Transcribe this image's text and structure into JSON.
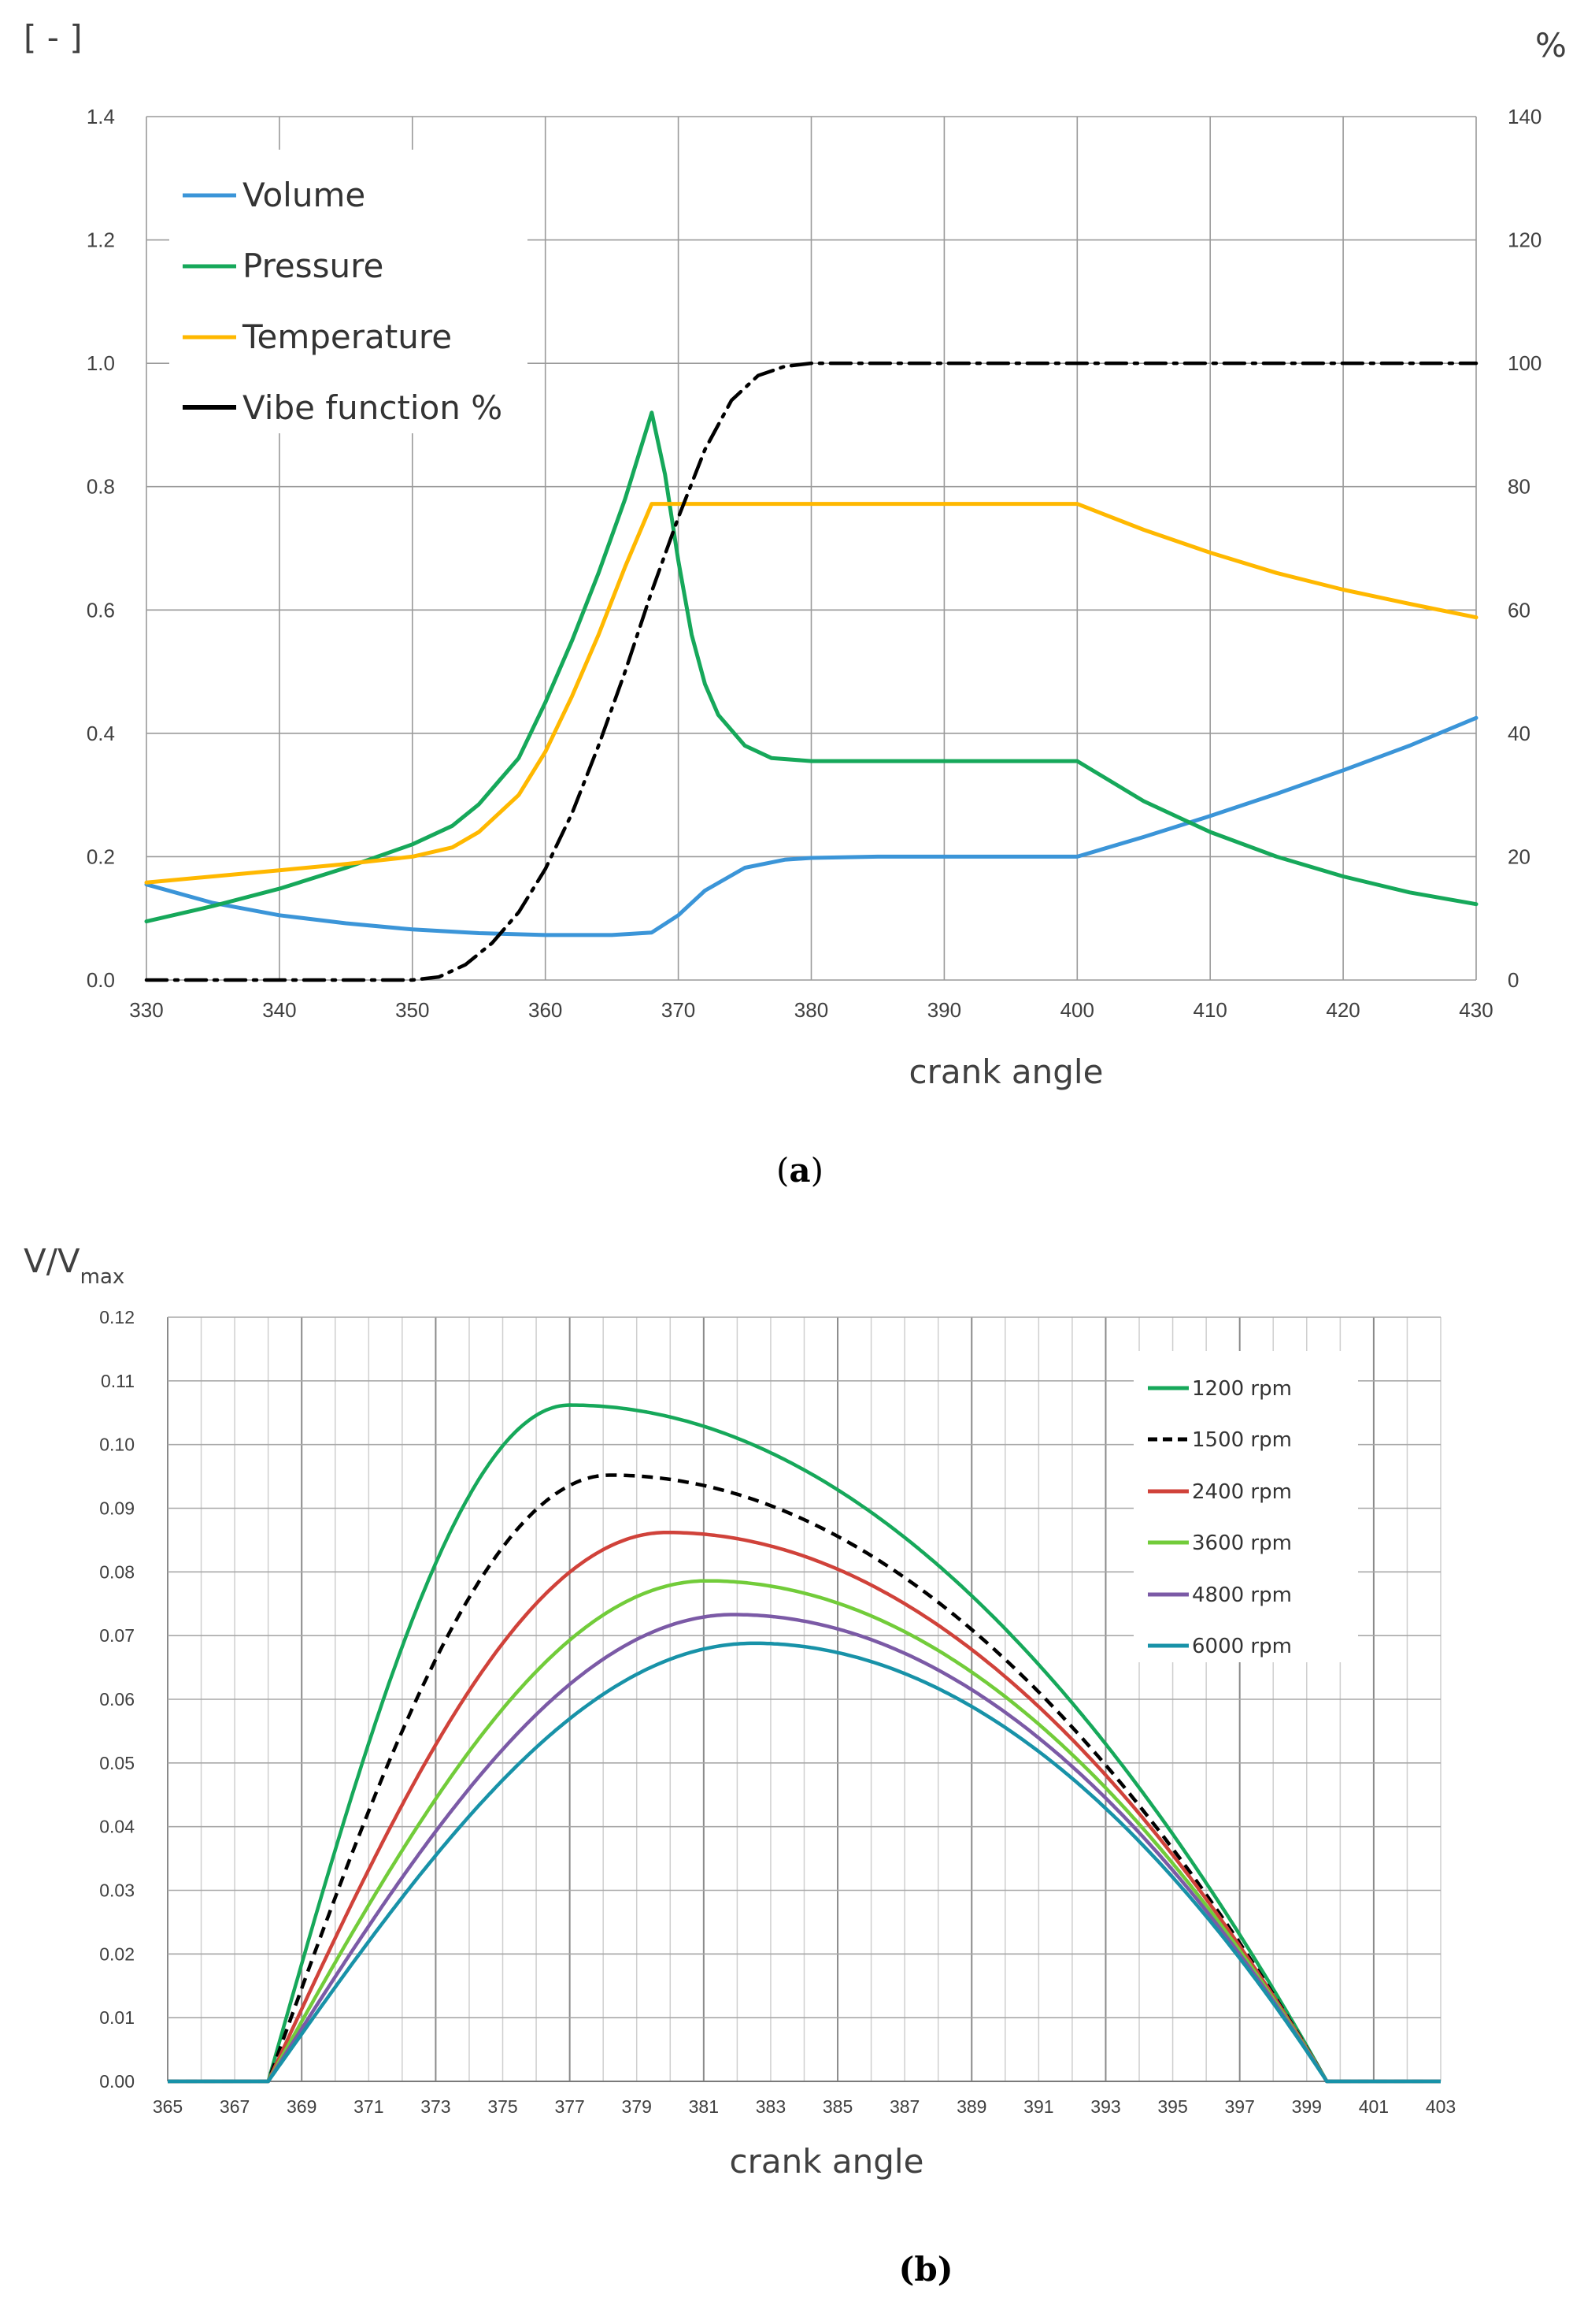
{
  "chart_data": [
    {
      "type": "line",
      "caption": "a",
      "caption_open": "(",
      "caption_close": ")",
      "xlabel": "crank angle",
      "ylabel_left": "[ - ]",
      "ylabel_right": "%",
      "xlim": [
        330,
        430
      ],
      "ylim_left": [
        0,
        1.4
      ],
      "ylim_right": [
        0,
        140
      ],
      "x_ticks": [
        "330",
        "340",
        "350",
        "360",
        "370",
        "380",
        "390",
        "400",
        "410",
        "420",
        "430"
      ],
      "y_ticks_left": [
        "0.0",
        "0.2",
        "0.4",
        "0.6",
        "0.8",
        "1.0",
        "1.2",
        "1.4"
      ],
      "y_ticks_right": [
        "0",
        "20",
        "40",
        "60",
        "80",
        "100",
        "120",
        "140"
      ],
      "grid": true,
      "legend_position": "top-left",
      "series": [
        {
          "name": "Volume",
          "color": "#3b95d8",
          "style": "solid",
          "axis": "left",
          "x": [
            330,
            335,
            340,
            345,
            350,
            355,
            360,
            365,
            368,
            370,
            372,
            375,
            378,
            380,
            385,
            390,
            395,
            400,
            405,
            410,
            415,
            420,
            425,
            430
          ],
          "y": [
            0.155,
            0.125,
            0.105,
            0.092,
            0.082,
            0.076,
            0.073,
            0.073,
            0.077,
            0.105,
            0.145,
            0.182,
            0.195,
            0.198,
            0.2,
            0.2,
            0.2,
            0.2,
            0.232,
            0.266,
            0.302,
            0.34,
            0.38,
            0.425
          ]
        },
        {
          "name": "Pressure",
          "color": "#16a85a",
          "style": "solid",
          "axis": "left",
          "x": [
            330,
            335,
            340,
            345,
            350,
            353,
            355,
            358,
            360,
            362,
            364,
            366,
            367,
            368,
            369,
            370,
            371,
            372,
            373,
            375,
            377,
            380,
            385,
            390,
            395,
            400,
            405,
            410,
            415,
            420,
            425,
            430
          ],
          "y": [
            0.095,
            0.12,
            0.148,
            0.182,
            0.22,
            0.25,
            0.285,
            0.36,
            0.45,
            0.55,
            0.66,
            0.78,
            0.85,
            0.92,
            0.82,
            0.68,
            0.56,
            0.48,
            0.43,
            0.38,
            0.36,
            0.355,
            0.355,
            0.355,
            0.355,
            0.355,
            0.29,
            0.24,
            0.2,
            0.168,
            0.142,
            0.123
          ]
        },
        {
          "name": "Temperature",
          "color": "#ffb800",
          "style": "solid",
          "axis": "left",
          "x": [
            330,
            335,
            340,
            345,
            350,
            353,
            355,
            358,
            360,
            362,
            364,
            366,
            368,
            370,
            380,
            390,
            400,
            405,
            410,
            415,
            420,
            425,
            430
          ],
          "y": [
            0.158,
            0.168,
            0.178,
            0.188,
            0.2,
            0.215,
            0.24,
            0.3,
            0.37,
            0.46,
            0.56,
            0.67,
            0.772,
            0.772,
            0.772,
            0.772,
            0.772,
            0.73,
            0.693,
            0.66,
            0.633,
            0.61,
            0.588
          ]
        },
        {
          "name": "Vibe function %",
          "color": "#000000",
          "style": "dashdot",
          "axis": "right",
          "x": [
            330,
            340,
            350,
            352,
            354,
            356,
            358,
            360,
            362,
            364,
            366,
            368,
            370,
            372,
            374,
            376,
            378,
            380,
            385,
            390,
            400,
            410,
            420,
            430
          ],
          "y": [
            0,
            0,
            0,
            0.5,
            2.5,
            6,
            11,
            18,
            27,
            38,
            50,
            63,
            75,
            86,
            94,
            98,
            99.5,
            100,
            100,
            100,
            100,
            100,
            100,
            100
          ]
        }
      ]
    },
    {
      "type": "line",
      "caption": "b",
      "caption_open": "(",
      "caption_close": ")",
      "xlabel": "crank angle",
      "ylabel": "V/V",
      "ylabel_sub": "max",
      "xlim": [
        365,
        403
      ],
      "ylim": [
        0,
        0.12
      ],
      "x_ticks": [
        "365",
        "367",
        "369",
        "371",
        "373",
        "375",
        "377",
        "379",
        "381",
        "383",
        "385",
        "387",
        "389",
        "391",
        "393",
        "395",
        "397",
        "399",
        "401",
        "403"
      ],
      "y_ticks": [
        "0.00",
        "0.01",
        "0.02",
        "0.03",
        "0.04",
        "0.05",
        "0.06",
        "0.07",
        "0.08",
        "0.09",
        "0.10",
        "0.11",
        "0.12"
      ],
      "grid": true,
      "legend_position": "top-right",
      "series": [
        {
          "name": "1200 rpm",
          "color": "#16a85a",
          "style": "solid",
          "peak_x": 377.0,
          "peak_y": 0.1062
        },
        {
          "name": "1500 rpm",
          "color": "#000000",
          "style": "dashed",
          "peak_x": 378.2,
          "peak_y": 0.0952
        },
        {
          "name": "2400 rpm",
          "color": "#d0423a",
          "style": "solid",
          "peak_x": 379.9,
          "peak_y": 0.0862
        },
        {
          "name": "3600 rpm",
          "color": "#72cc3a",
          "style": "solid",
          "peak_x": 381.1,
          "peak_y": 0.0786
        },
        {
          "name": "4800 rpm",
          "color": "#7b5aa6",
          "style": "solid",
          "peak_x": 381.9,
          "peak_y": 0.0733
        },
        {
          "name": "6000 rpm",
          "color": "#1892a8",
          "style": "solid",
          "peak_x": 382.5,
          "peak_y": 0.0688
        }
      ],
      "start_x": 368,
      "end_x": 399.6,
      "flat_before": [
        365,
        368
      ],
      "flat_after": [
        399.6,
        403
      ]
    }
  ]
}
